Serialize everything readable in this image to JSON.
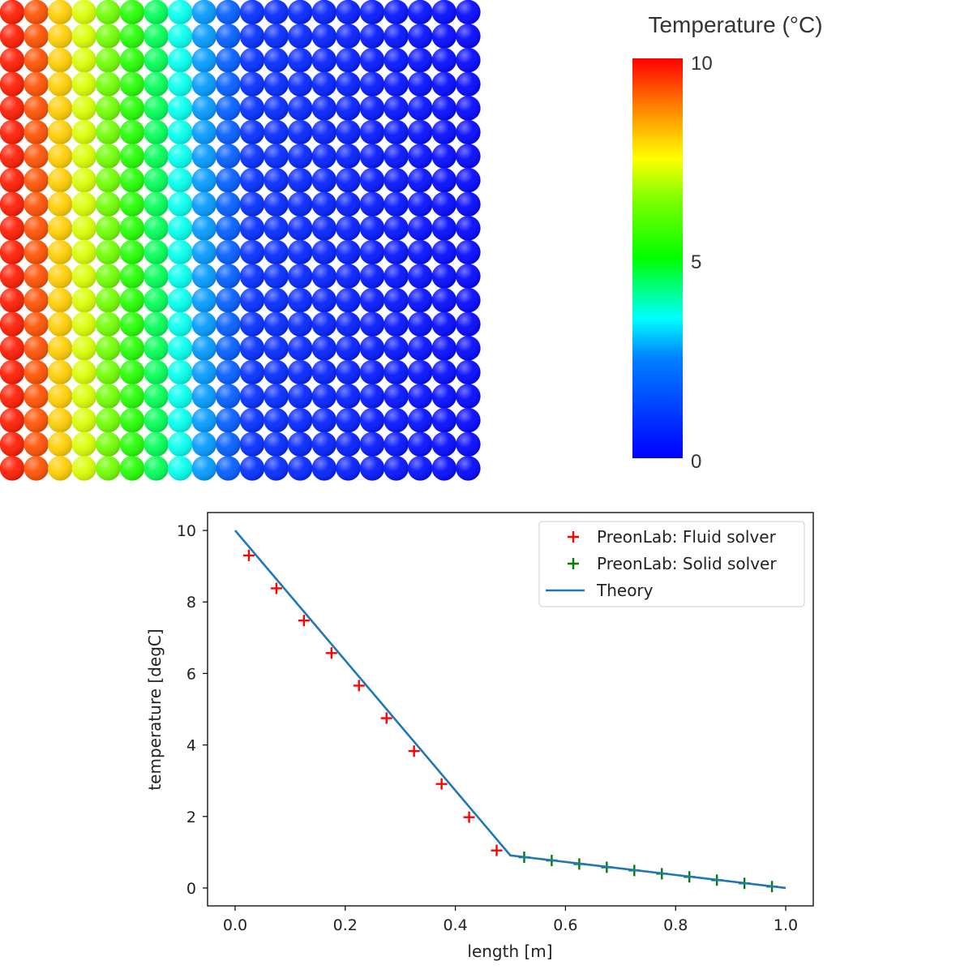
{
  "colorbar": {
    "title": "Temperature (°C)",
    "min": 0,
    "max": 10,
    "ticks": [
      "10",
      "5",
      "0"
    ]
  },
  "particles": {
    "columns": 20,
    "rows": 20,
    "column_temperatures": [
      9.75,
      9.25,
      8.0,
      7.2,
      6.3,
      5.4,
      4.5,
      3.6,
      2.7,
      1.8,
      0.86,
      0.77,
      0.68,
      0.59,
      0.5,
      0.41,
      0.32,
      0.23,
      0.14,
      0.05
    ]
  },
  "chart_data": {
    "type": "line",
    "xlabel": "length [m]",
    "ylabel": "temperature [degC]",
    "xlim": [
      -0.05,
      1.05
    ],
    "ylim": [
      -0.5,
      10.5
    ],
    "xticks": [
      0.0,
      0.2,
      0.4,
      0.6,
      0.8,
      1.0
    ],
    "xtick_labels": [
      "0.0",
      "0.2",
      "0.4",
      "0.6",
      "0.8",
      "1.0"
    ],
    "yticks": [
      0,
      2,
      4,
      6,
      8,
      10
    ],
    "ytick_labels": [
      "0",
      "2",
      "4",
      "6",
      "8",
      "10"
    ],
    "grid": false,
    "legend_position": "top-right",
    "series": [
      {
        "name": "PreonLab: Fluid solver",
        "kind": "scatter",
        "marker": "+",
        "color": "#ff0000",
        "x": [
          0.025,
          0.075,
          0.125,
          0.175,
          0.225,
          0.275,
          0.325,
          0.375,
          0.425,
          0.475
        ],
        "y": [
          9.3,
          8.38,
          7.48,
          6.57,
          5.66,
          4.75,
          3.83,
          2.91,
          1.98,
          1.05
        ]
      },
      {
        "name": "PreonLab: Solid solver",
        "kind": "scatter",
        "marker": "+",
        "color": "#008000",
        "x": [
          0.525,
          0.575,
          0.625,
          0.675,
          0.725,
          0.775,
          0.825,
          0.875,
          0.925,
          0.975
        ],
        "y": [
          0.86,
          0.77,
          0.67,
          0.58,
          0.49,
          0.4,
          0.31,
          0.22,
          0.13,
          0.04
        ]
      },
      {
        "name": "Theory",
        "kind": "line",
        "color": "#1f77b4",
        "x": [
          0.0,
          0.5,
          1.0
        ],
        "y": [
          10.0,
          0.91,
          0.0
        ]
      }
    ]
  }
}
